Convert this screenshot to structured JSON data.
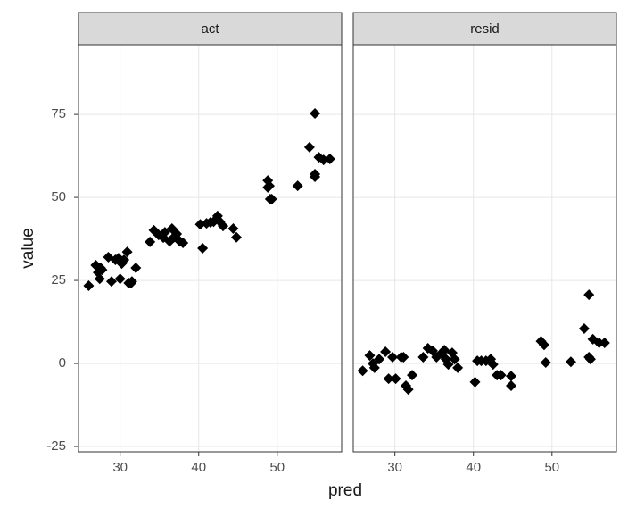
{
  "chart_data": [
    {
      "type": "scatter",
      "title": "act",
      "xlabel": "pred",
      "ylabel": "value",
      "color": "#000000",
      "grid": true,
      "xlim": [
        24.7,
        58.2
      ],
      "ylim": [
        -26.6,
        96
      ],
      "xticks": [
        30,
        40,
        50
      ],
      "yticks": [
        -25,
        0,
        25,
        50,
        75
      ],
      "x": [
        26.0,
        26.9,
        27.2,
        27.4,
        27.5,
        27.7,
        28.5,
        28.9,
        29.4,
        29.8,
        30.0,
        30.2,
        30.5,
        30.9,
        31.1,
        31.4,
        31.5,
        32.0,
        33.8,
        34.3,
        34.9,
        35.5,
        35.7,
        36.3,
        36.6,
        36.8,
        37.2,
        37.6,
        38.0,
        40.2,
        40.5,
        41.0,
        41.5,
        41.9,
        42.4,
        42.7,
        43.1,
        44.4,
        44.8,
        48.8,
        49.0,
        49.1,
        49.3,
        48.8,
        52.6,
        54.1,
        54.8,
        54.8,
        54.8,
        55.3,
        55.9,
        56.7
      ],
      "values": [
        23.4,
        29.6,
        27.4,
        25.5,
        28.8,
        28.2,
        32.0,
        24.7,
        31.2,
        31.7,
        25.5,
        30.1,
        31.2,
        33.6,
        24.2,
        24.2,
        24.7,
        28.8,
        36.6,
        40.1,
        38.7,
        37.9,
        39.5,
        36.8,
        40.6,
        37.9,
        39.0,
        36.8,
        36.3,
        41.9,
        34.7,
        42.2,
        42.5,
        42.7,
        44.4,
        42.7,
        41.4,
        40.6,
        38.0,
        55.1,
        53.5,
        49.5,
        49.5,
        53.0,
        53.5,
        65.1,
        56.2,
        57.0,
        75.3,
        62.1,
        61.3,
        61.6
      ]
    },
    {
      "type": "scatter",
      "title": "resid",
      "color": "#000000",
      "grid": true,
      "xlim": [
        24.7,
        58.2
      ],
      "ylim": [
        -26.6,
        96
      ],
      "xticks": [
        30,
        40,
        50
      ],
      "yticks": [
        -25,
        0,
        25,
        50,
        75
      ],
      "x": [
        25.9,
        26.8,
        27.2,
        27.4,
        28.0,
        28.8,
        29.2,
        29.7,
        30.1,
        30.8,
        31.1,
        31.4,
        31.7,
        32.2,
        33.6,
        34.2,
        34.8,
        35.3,
        35.9,
        36.3,
        36.5,
        36.8,
        37.3,
        37.6,
        38.0,
        40.2,
        40.5,
        41.0,
        41.6,
        42.2,
        42.5,
        43.0,
        43.5,
        44.8,
        44.8,
        48.6,
        49.0,
        49.2,
        52.4,
        54.1,
        54.7,
        54.7,
        54.9,
        55.2,
        56.0,
        56.7
      ],
      "values": [
        -2.2,
        2.4,
        0,
        -1.3,
        1.3,
        3.5,
        -4.6,
        1.9,
        -4.6,
        1.9,
        1.9,
        -6.7,
        -7.8,
        -3.5,
        1.9,
        4.6,
        3.8,
        1.9,
        3.0,
        4.0,
        1.3,
        -0.3,
        3.2,
        1.3,
        -1.3,
        -5.6,
        0.8,
        0.8,
        0.8,
        1.3,
        -0.3,
        -3.5,
        -3.5,
        -6.7,
        -3.8,
        6.7,
        5.6,
        0.3,
        0.5,
        10.5,
        20.7,
        1.9,
        1.3,
        7.3,
        6.2,
        6.2
      ]
    }
  ]
}
